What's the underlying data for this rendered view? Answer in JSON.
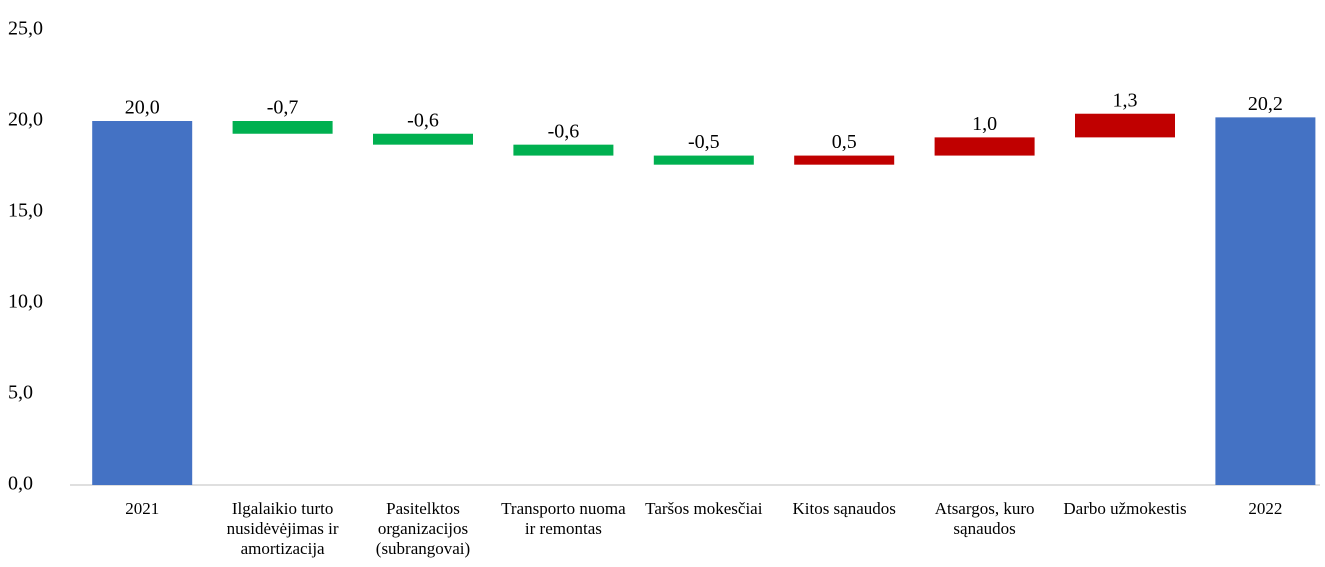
{
  "chart_data": {
    "type": "waterfall",
    "categories": [
      "2021",
      "Ilgalaikio turto nusidėvėjimas ir amortizacija",
      "Pasitelktos organizacijos (subrangovai)",
      "Transporto nuoma ir remontas",
      "Taršos mokesčiai",
      "Kitos sąnaudos",
      "Atsargos, kuro sąnaudos",
      "Darbo užmokestis",
      "2022"
    ],
    "values": [
      20.0,
      -0.7,
      -0.6,
      -0.6,
      -0.5,
      0.5,
      1.0,
      1.3,
      20.2
    ],
    "value_labels": [
      "20,0",
      "-0,7",
      "-0,6",
      "-0,6",
      "-0,5",
      "0,5",
      "1,0",
      "1,3",
      "20,2"
    ],
    "measures": [
      "total",
      "relative",
      "relative",
      "relative",
      "relative",
      "relative",
      "relative",
      "relative",
      "total"
    ],
    "colors": {
      "total": "#4472c4",
      "decrease": "#00b050",
      "increase": "#c00000"
    },
    "ylim": [
      0,
      25
    ],
    "yticks": [
      {
        "value": 0,
        "label": "0,0"
      },
      {
        "value": 5,
        "label": "5,0"
      },
      {
        "value": 10,
        "label": "10,0"
      },
      {
        "value": 15,
        "label": "15,0"
      },
      {
        "value": 20,
        "label": "20,0"
      },
      {
        "value": 25,
        "label": "25,0"
      }
    ],
    "grid": false
  }
}
